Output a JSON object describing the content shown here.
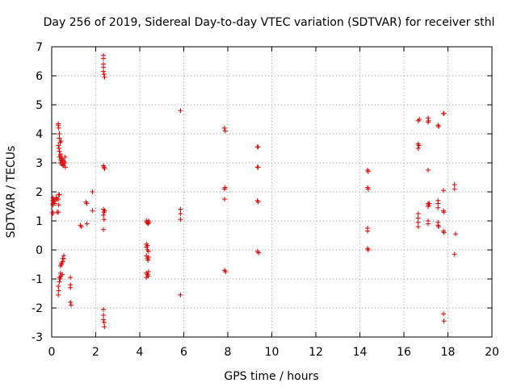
{
  "chart_data": {
    "type": "scatter",
    "title": "Day 256 of 2019, Sidereal Day-to-day VTEC variation (SDTVAR) for receiver sthl",
    "xlabel": "GPS time / hours",
    "ylabel": "SDTVAR / TECUs",
    "xlim": [
      0,
      20
    ],
    "ylim": [
      -3,
      7
    ],
    "xticks": [
      "0",
      "2",
      "4",
      "6",
      "8",
      "10",
      "12",
      "14",
      "16",
      "18",
      "20"
    ],
    "yticks": [
      "-3",
      "-2",
      "-1",
      "0",
      "1",
      "2",
      "3",
      "4",
      "5",
      "6",
      "7"
    ],
    "grid": true,
    "marker": "+",
    "color": "#dd0000",
    "series": [
      {
        "name": "SDTVAR",
        "points": [
          [
            0.05,
            1.25
          ],
          [
            0.05,
            1.3
          ],
          [
            0.05,
            1.55
          ],
          [
            0.05,
            1.6
          ],
          [
            0.05,
            1.7
          ],
          [
            0.05,
            1.8
          ],
          [
            0.1,
            1.75
          ],
          [
            0.1,
            1.65
          ],
          [
            0.15,
            1.6
          ],
          [
            0.15,
            1.7
          ],
          [
            0.2,
            1.8
          ],
          [
            0.25,
            1.75
          ],
          [
            0.25,
            1.3
          ],
          [
            0.3,
            4.35
          ],
          [
            0.3,
            4.3
          ],
          [
            0.32,
            4.2
          ],
          [
            0.35,
            4.0
          ],
          [
            0.35,
            3.85
          ],
          [
            0.38,
            3.7
          ],
          [
            0.3,
            3.6
          ],
          [
            0.33,
            3.5
          ],
          [
            0.35,
            3.4
          ],
          [
            0.4,
            3.3
          ],
          [
            0.35,
            3.2
          ],
          [
            0.42,
            3.1
          ],
          [
            0.38,
            3.0
          ],
          [
            0.45,
            3.0
          ],
          [
            0.48,
            2.95
          ],
          [
            0.52,
            2.9
          ],
          [
            0.55,
            3.05
          ],
          [
            0.6,
            3.2
          ],
          [
            0.6,
            3.0
          ],
          [
            0.62,
            2.85
          ],
          [
            0.4,
            3.25
          ],
          [
            0.45,
            3.15
          ],
          [
            0.5,
            3.1
          ],
          [
            0.55,
            3.0
          ],
          [
            0.42,
            3.75
          ],
          [
            0.3,
            1.9
          ],
          [
            0.3,
            1.75
          ],
          [
            0.32,
            1.55
          ],
          [
            0.3,
            1.3
          ],
          [
            0.35,
            1.9
          ],
          [
            0.3,
            -1.25
          ],
          [
            0.32,
            -1.4
          ],
          [
            0.3,
            -1.55
          ],
          [
            0.35,
            -1.1
          ],
          [
            0.35,
            -0.95
          ],
          [
            0.4,
            -0.8
          ],
          [
            0.4,
            -0.55
          ],
          [
            0.45,
            -0.45
          ],
          [
            0.5,
            -0.4
          ],
          [
            0.55,
            -0.3
          ],
          [
            0.5,
            -0.3
          ],
          [
            0.55,
            -0.2
          ],
          [
            0.38,
            -1.0
          ],
          [
            0.42,
            -0.9
          ],
          [
            0.48,
            -0.85
          ],
          [
            0.45,
            -0.5
          ],
          [
            0.85,
            -0.95
          ],
          [
            0.85,
            -1.2
          ],
          [
            0.85,
            -1.3
          ],
          [
            0.85,
            -1.8
          ],
          [
            0.88,
            -1.9
          ],
          [
            1.3,
            0.85
          ],
          [
            1.35,
            0.8
          ],
          [
            1.55,
            1.65
          ],
          [
            1.6,
            1.6
          ],
          [
            1.6,
            0.9
          ],
          [
            1.85,
            2.0
          ],
          [
            1.85,
            1.35
          ],
          [
            2.35,
            6.7
          ],
          [
            2.35,
            6.6
          ],
          [
            2.35,
            6.4
          ],
          [
            2.35,
            6.3
          ],
          [
            2.35,
            6.15
          ],
          [
            2.38,
            6.05
          ],
          [
            2.4,
            5.95
          ],
          [
            2.35,
            2.9
          ],
          [
            2.38,
            2.85
          ],
          [
            2.4,
            2.8
          ],
          [
            2.35,
            1.4
          ],
          [
            2.38,
            1.3
          ],
          [
            2.4,
            1.35
          ],
          [
            2.35,
            1.2
          ],
          [
            2.38,
            1.05
          ],
          [
            2.35,
            0.7
          ],
          [
            2.35,
            -2.05
          ],
          [
            2.35,
            -2.25
          ],
          [
            2.35,
            -2.4
          ],
          [
            2.38,
            -2.5
          ],
          [
            2.4,
            -2.65
          ],
          [
            4.3,
            1.0
          ],
          [
            4.32,
            0.95
          ],
          [
            4.35,
            0.95
          ],
          [
            4.38,
            0.9
          ],
          [
            4.4,
            1.0
          ],
          [
            4.42,
            0.95
          ],
          [
            4.3,
            0.2
          ],
          [
            4.35,
            0.15
          ],
          [
            4.3,
            0.1
          ],
          [
            4.35,
            0.0
          ],
          [
            4.4,
            -0.05
          ],
          [
            4.3,
            -0.2
          ],
          [
            4.35,
            -0.3
          ],
          [
            4.38,
            -0.35
          ],
          [
            4.4,
            -0.25
          ],
          [
            4.3,
            -0.8
          ],
          [
            4.35,
            -0.85
          ],
          [
            4.3,
            -0.95
          ],
          [
            4.38,
            -0.9
          ],
          [
            4.4,
            -0.75
          ],
          [
            5.85,
            4.8
          ],
          [
            5.85,
            1.4
          ],
          [
            5.85,
            1.25
          ],
          [
            5.85,
            1.05
          ],
          [
            5.85,
            -1.55
          ],
          [
            7.85,
            4.2
          ],
          [
            7.88,
            4.1
          ],
          [
            7.88,
            2.15
          ],
          [
            7.85,
            2.1
          ],
          [
            7.85,
            1.75
          ],
          [
            7.85,
            -0.7
          ],
          [
            7.9,
            -0.75
          ],
          [
            9.35,
            3.55
          ],
          [
            9.38,
            3.55
          ],
          [
            9.35,
            2.85
          ],
          [
            9.38,
            2.85
          ],
          [
            9.35,
            1.7
          ],
          [
            9.38,
            1.65
          ],
          [
            9.35,
            -0.05
          ],
          [
            9.4,
            -0.1
          ],
          [
            14.35,
            2.75
          ],
          [
            14.38,
            2.7
          ],
          [
            14.35,
            2.15
          ],
          [
            14.38,
            2.1
          ],
          [
            14.35,
            0.75
          ],
          [
            14.35,
            0.65
          ],
          [
            14.35,
            0.05
          ],
          [
            14.38,
            0.0
          ],
          [
            16.65,
            4.45
          ],
          [
            16.7,
            4.5
          ],
          [
            16.65,
            3.65
          ],
          [
            16.68,
            3.6
          ],
          [
            16.65,
            3.5
          ],
          [
            16.65,
            1.25
          ],
          [
            16.65,
            1.1
          ],
          [
            16.65,
            0.95
          ],
          [
            16.65,
            0.8
          ],
          [
            17.1,
            4.55
          ],
          [
            17.12,
            4.45
          ],
          [
            17.1,
            4.4
          ],
          [
            17.1,
            2.75
          ],
          [
            17.1,
            1.6
          ],
          [
            17.12,
            1.55
          ],
          [
            17.15,
            1.6
          ],
          [
            17.1,
            1.5
          ],
          [
            17.1,
            1.0
          ],
          [
            17.1,
            0.9
          ],
          [
            17.55,
            4.3
          ],
          [
            17.58,
            4.25
          ],
          [
            17.55,
            1.7
          ],
          [
            17.55,
            1.6
          ],
          [
            17.55,
            1.45
          ],
          [
            17.55,
            0.95
          ],
          [
            17.55,
            0.85
          ],
          [
            17.58,
            0.8
          ],
          [
            17.8,
            4.7
          ],
          [
            17.82,
            4.7
          ],
          [
            17.8,
            2.05
          ],
          [
            17.8,
            1.35
          ],
          [
            17.82,
            1.3
          ],
          [
            17.8,
            0.65
          ],
          [
            17.82,
            0.6
          ],
          [
            17.8,
            -2.2
          ],
          [
            17.82,
            -2.45
          ],
          [
            18.3,
            2.25
          ],
          [
            18.3,
            2.1
          ],
          [
            18.35,
            0.55
          ],
          [
            18.3,
            -0.15
          ]
        ]
      }
    ]
  }
}
